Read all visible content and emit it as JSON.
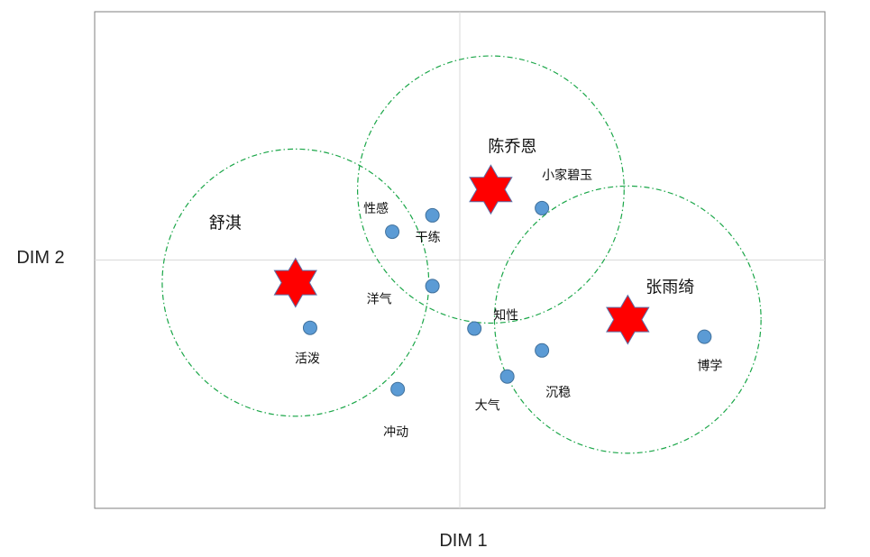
{
  "colors": {
    "plot_border": "#7f7f7f",
    "axis_line": "#d9d9d9",
    "circle": "#1aa648",
    "point_fill": "#5b9bd5",
    "point_stroke": "#41719c",
    "star_fill": "#ff0000",
    "star_stroke": "#5b6fa8"
  },
  "chart_data": {
    "type": "scatter",
    "xlabel": "DIM 1",
    "ylabel": "DIM 2",
    "xlim": [
      -10,
      10
    ],
    "ylim": [
      -10,
      10
    ],
    "grid": false,
    "axes_through_origin": true,
    "points": [
      {
        "label": "性感",
        "x": -1.85,
        "y": 1.14
      },
      {
        "label": "干练",
        "x": -0.75,
        "y": 1.8
      },
      {
        "label": "小家碧玉",
        "x": 2.25,
        "y": 2.09
      },
      {
        "label": "洋气",
        "x": -0.75,
        "y": -1.05
      },
      {
        "label": "知性",
        "x": 0.4,
        "y": -2.76
      },
      {
        "label": "活泼",
        "x": -4.1,
        "y": -2.73
      },
      {
        "label": "沉稳",
        "x": 2.25,
        "y": -3.64
      },
      {
        "label": "大气",
        "x": 1.3,
        "y": -4.69
      },
      {
        "label": "冲动",
        "x": -1.7,
        "y": -5.2
      },
      {
        "label": "博学",
        "x": 6.7,
        "y": -3.09
      }
    ],
    "stars": [
      {
        "label": "舒淇",
        "x": -4.5,
        "y": -0.91
      },
      {
        "label": "陈乔恩",
        "x": 0.85,
        "y": 2.84
      },
      {
        "label": "张雨绮",
        "x": 4.6,
        "y": -2.4
      }
    ],
    "circles": [
      {
        "center": "舒淇",
        "x": -4.5,
        "y": -0.91,
        "radius_x": 3.65,
        "radius_y": 5.38
      },
      {
        "center": "陈乔恩",
        "x": 0.85,
        "y": 2.84,
        "radius_x": 3.65,
        "radius_y": 5.38
      },
      {
        "center": "张雨绮",
        "x": 4.6,
        "y": -2.4,
        "radius_x": 3.65,
        "radius_y": 5.38
      }
    ]
  }
}
